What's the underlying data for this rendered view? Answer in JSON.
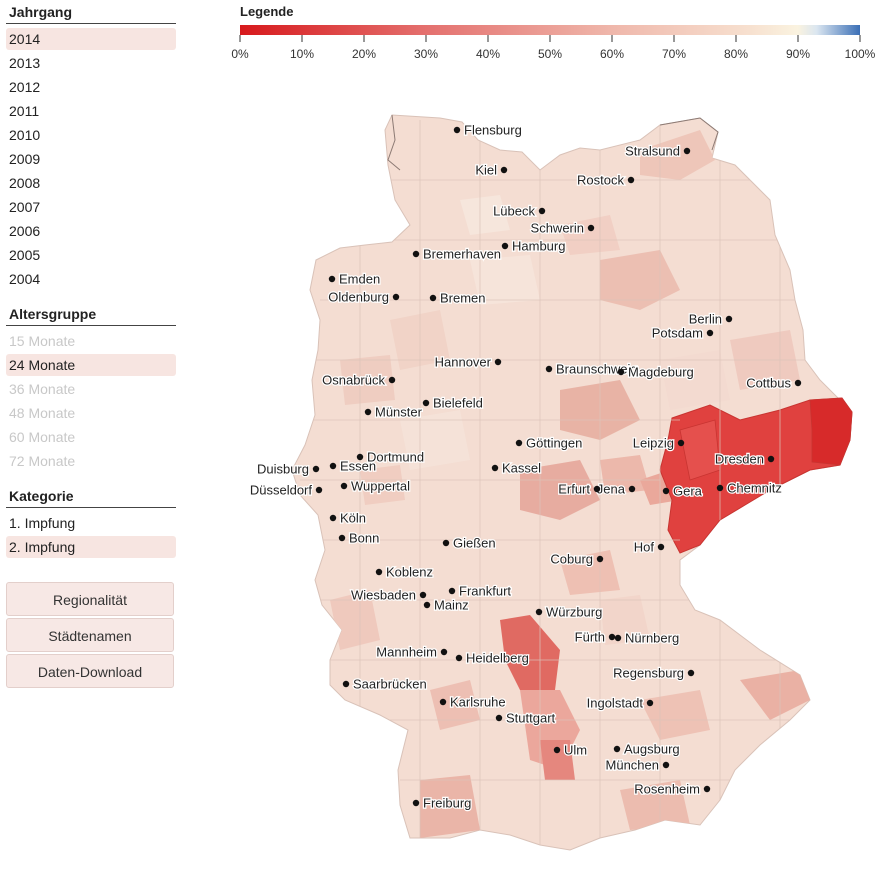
{
  "sidebar": {
    "jahrgang": {
      "title": "Jahrgang",
      "items": [
        {
          "label": "2014",
          "state": "selected"
        },
        {
          "label": "2013",
          "state": "normal"
        },
        {
          "label": "2012",
          "state": "normal"
        },
        {
          "label": "2011",
          "state": "normal"
        },
        {
          "label": "2010",
          "state": "normal"
        },
        {
          "label": "2009",
          "state": "normal"
        },
        {
          "label": "2008",
          "state": "normal"
        },
        {
          "label": "2007",
          "state": "normal"
        },
        {
          "label": "2006",
          "state": "normal"
        },
        {
          "label": "2005",
          "state": "normal"
        },
        {
          "label": "2004",
          "state": "normal"
        }
      ]
    },
    "altersgruppe": {
      "title": "Altersgruppe",
      "items": [
        {
          "label": "15 Monate",
          "state": "disabled"
        },
        {
          "label": "24 Monate",
          "state": "selected"
        },
        {
          "label": "36 Monate",
          "state": "disabled"
        },
        {
          "label": "48 Monate",
          "state": "disabled"
        },
        {
          "label": "60 Monate",
          "state": "disabled"
        },
        {
          "label": "72 Monate",
          "state": "disabled"
        }
      ]
    },
    "kategorie": {
      "title": "Kategorie",
      "items": [
        {
          "label": "1. Impfung",
          "state": "normal"
        },
        {
          "label": "2. Impfung",
          "state": "selected"
        }
      ]
    },
    "buttons": [
      "Regionalität",
      "Städtenamen",
      "Daten-Download"
    ]
  },
  "legend": {
    "title": "Legende",
    "ticks": [
      "0%",
      "10%",
      "20%",
      "30%",
      "40%",
      "50%",
      "60%",
      "70%",
      "80%",
      "90%",
      "100%"
    ],
    "colors": {
      "low": "#d7191c",
      "mid": "#f3d6cc",
      "high_cream": "#faf3e0",
      "top": "#3b6fb6"
    }
  },
  "map": {
    "base_color": "#f4ddd2",
    "outline_color": "#cfb8ad",
    "saxony_color": "#e0413f",
    "cities": [
      {
        "name": "Flensburg",
        "label_side": "right"
      },
      {
        "name": "Stralsund",
        "label_side": "left"
      },
      {
        "name": "Kiel",
        "label_side": "left"
      },
      {
        "name": "Rostock",
        "label_side": "left"
      },
      {
        "name": "Lübeck",
        "label_side": "left"
      },
      {
        "name": "Schwerin",
        "label_side": "left"
      },
      {
        "name": "Hamburg",
        "label_side": "right"
      },
      {
        "name": "Bremerhaven",
        "label_side": "right"
      },
      {
        "name": "Emden",
        "label_side": "right"
      },
      {
        "name": "Oldenburg",
        "label_side": "left"
      },
      {
        "name": "Bremen",
        "label_side": "right"
      },
      {
        "name": "Berlin",
        "label_side": "left"
      },
      {
        "name": "Potsdam",
        "label_side": "left"
      },
      {
        "name": "Hannover",
        "label_side": "left"
      },
      {
        "name": "Braunschweig",
        "label_side": "right"
      },
      {
        "name": "Magdeburg",
        "label_side": "right"
      },
      {
        "name": "Cottbus",
        "label_side": "left"
      },
      {
        "name": "Osnabrück",
        "label_side": "left"
      },
      {
        "name": "Bielefeld",
        "label_side": "right"
      },
      {
        "name": "Münster",
        "label_side": "right"
      },
      {
        "name": "Göttingen",
        "label_side": "right"
      },
      {
        "name": "Leipzig",
        "label_side": "left"
      },
      {
        "name": "Dresden",
        "label_side": "left"
      },
      {
        "name": "Dortmund",
        "label_side": "right"
      },
      {
        "name": "Duisburg",
        "label_side": "left"
      },
      {
        "name": "Essen",
        "label_side": "right"
      },
      {
        "name": "Kassel",
        "label_side": "right"
      },
      {
        "name": "Jena",
        "label_side": "left"
      },
      {
        "name": "Erfurt",
        "label_side": "left"
      },
      {
        "name": "Gera",
        "label_side": "right"
      },
      {
        "name": "Chemnitz",
        "label_side": "right"
      },
      {
        "name": "Düsseldorf",
        "label_side": "left"
      },
      {
        "name": "Wuppertal",
        "label_side": "right"
      },
      {
        "name": "Köln",
        "label_side": "right"
      },
      {
        "name": "Bonn",
        "label_side": "right"
      },
      {
        "name": "Gießen",
        "label_side": "right"
      },
      {
        "name": "Hof",
        "label_side": "left"
      },
      {
        "name": "Coburg",
        "label_side": "left"
      },
      {
        "name": "Koblenz",
        "label_side": "right"
      },
      {
        "name": "Frankfurt",
        "label_side": "right"
      },
      {
        "name": "Wiesbaden",
        "label_side": "left"
      },
      {
        "name": "Mainz",
        "label_side": "right"
      },
      {
        "name": "Würzburg",
        "label_side": "right"
      },
      {
        "name": "Fürth",
        "label_side": "left"
      },
      {
        "name": "Nürnberg",
        "label_side": "right"
      },
      {
        "name": "Mannheim",
        "label_side": "left"
      },
      {
        "name": "Heidelberg",
        "label_side": "right"
      },
      {
        "name": "Regensburg",
        "label_side": "left"
      },
      {
        "name": "Saarbrücken",
        "label_side": "right"
      },
      {
        "name": "Karlsruhe",
        "label_side": "right"
      },
      {
        "name": "Ingolstadt",
        "label_side": "left"
      },
      {
        "name": "Stuttgart",
        "label_side": "right"
      },
      {
        "name": "Ulm",
        "label_side": "right"
      },
      {
        "name": "Augsburg",
        "label_side": "right"
      },
      {
        "name": "München",
        "label_side": "left"
      },
      {
        "name": "Rosenheim",
        "label_side": "left"
      },
      {
        "name": "Freiburg",
        "label_side": "right"
      }
    ]
  }
}
